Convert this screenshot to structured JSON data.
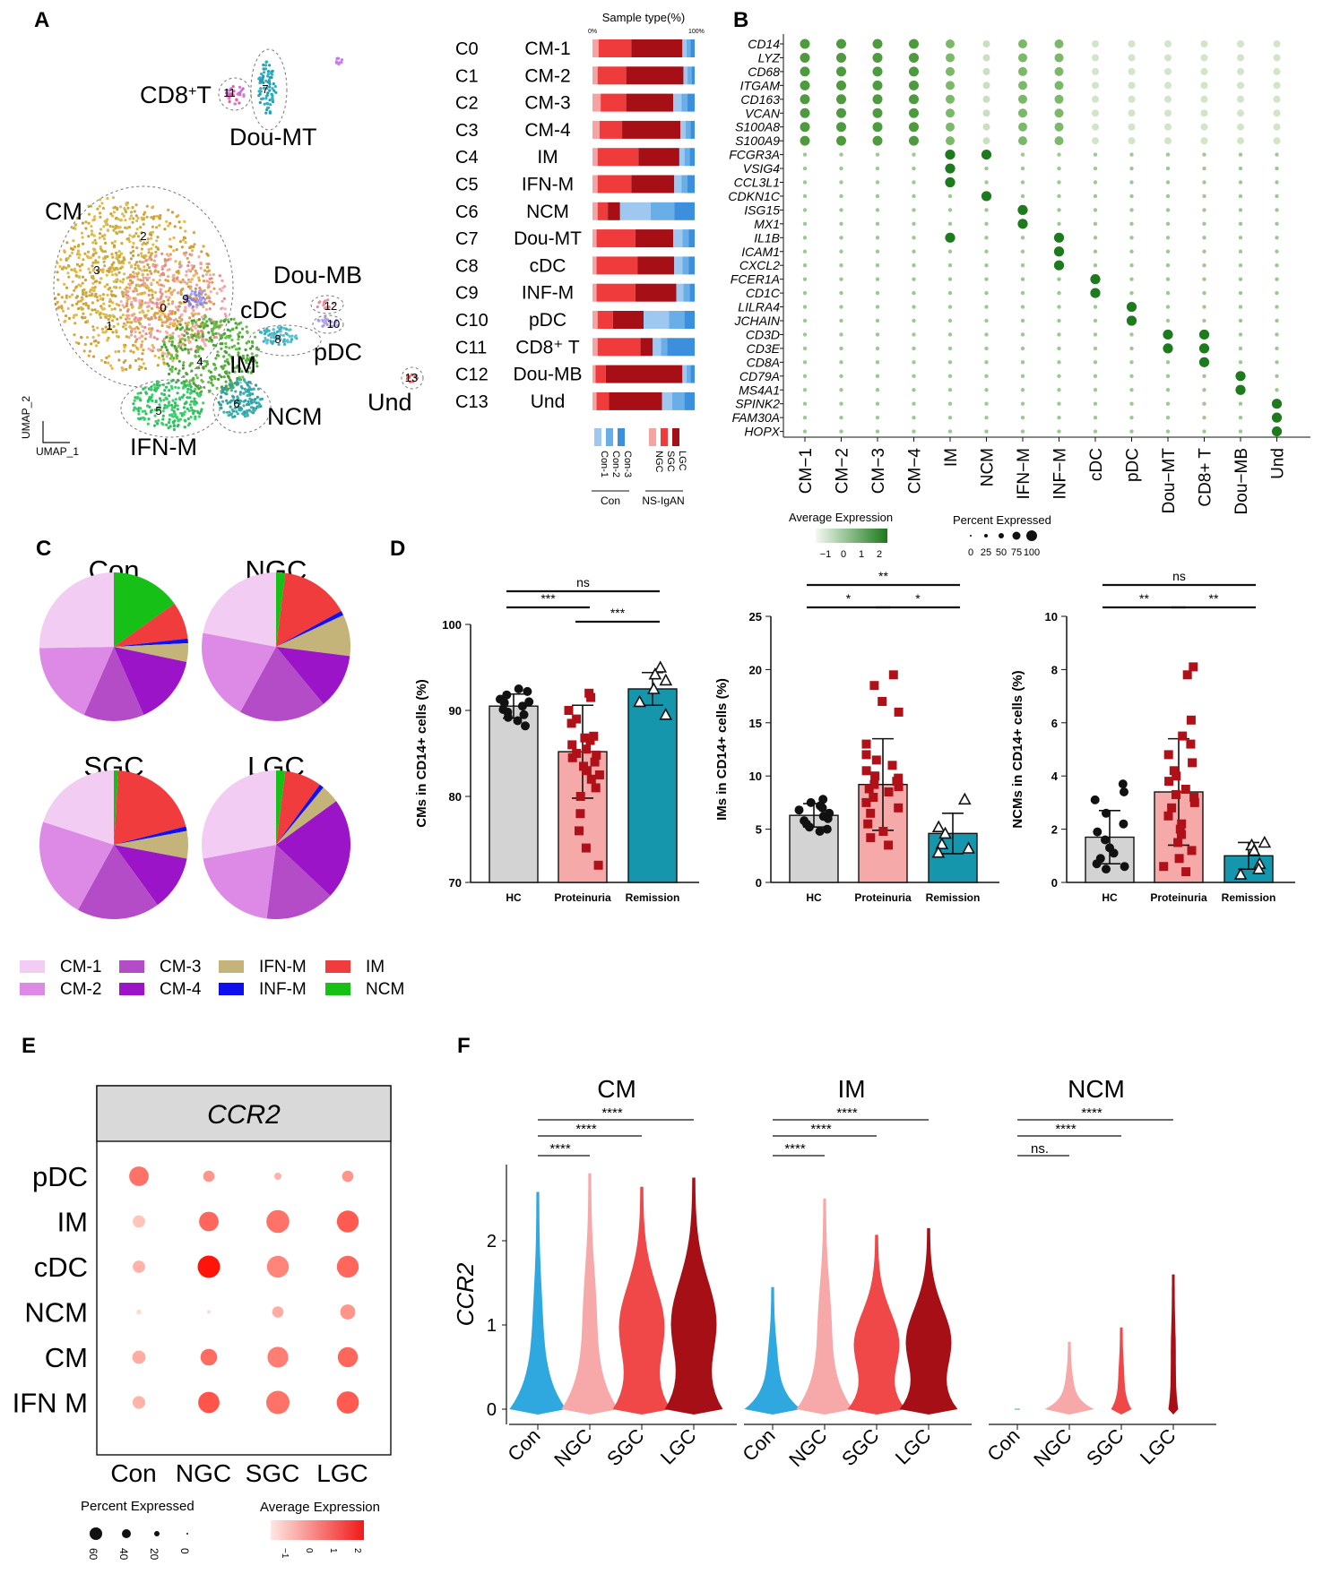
{
  "panel_labels": {
    "A": "A",
    "B": "B",
    "C": "C",
    "D": "D",
    "E": "E",
    "F": "F"
  },
  "colors": {
    "con1": "#9ec8f0",
    "con2": "#6aaee8",
    "con3": "#3c8fdc",
    "ngc": "#f6a3a3",
    "sgc": "#ef3b3b",
    "lgc": "#a50f15",
    "hc_bar": "#d3d3d3",
    "prot_bar": "#f6a9a9",
    "rem_bar": "#1596ac",
    "prot_point": "#b01018",
    "green_hi": "#1a7a1a",
    "green_lo": "#e6f2e0",
    "violin_con": "#2fa8e0",
    "violin_ngc": "#f7a8a8",
    "violin_sgc": "#f04848",
    "violin_lgc": "#a50f15"
  },
  "umap": {
    "axis_x": "UMAP_1",
    "axis_y": "UMAP_2",
    "cluster_labels": [
      {
        "text": "CD8",
        "sup": "+",
        "tail": "T"
      },
      {
        "text": "Dou-MT"
      },
      {
        "text": "CM"
      },
      {
        "text": "Dou-MB"
      },
      {
        "text": "cDC"
      },
      {
        "text": "pDC"
      },
      {
        "text": "IM"
      },
      {
        "text": "Und"
      },
      {
        "text": "NCM"
      },
      {
        "text": "IFN-M"
      }
    ],
    "cluster_numbers": [
      "0",
      "1",
      "2",
      "3",
      "4",
      "5",
      "6",
      "7",
      "8",
      "9",
      "10",
      "11",
      "12",
      "13"
    ]
  },
  "sample_type": {
    "title": "Sample type(%)",
    "tick_start": "0%",
    "tick_end": "100%",
    "rows": [
      {
        "code": "C0",
        "name": "CM-1"
      },
      {
        "code": "C1",
        "name": "CM-2"
      },
      {
        "code": "C2",
        "name": "CM-3"
      },
      {
        "code": "C3",
        "name": "CM-4"
      },
      {
        "code": "C4",
        "name": "IM"
      },
      {
        "code": "C5",
        "name": "IFN-M"
      },
      {
        "code": "C6",
        "name": "NCM"
      },
      {
        "code": "C7",
        "name": "Dou-MT"
      },
      {
        "code": "C8",
        "name": "cDC"
      },
      {
        "code": "C9",
        "name": "INF-M"
      },
      {
        "code": "C10",
        "name": "pDC"
      },
      {
        "code": "C11",
        "name": "CD8⁺ T"
      },
      {
        "code": "C12",
        "name": "Dou-MB"
      },
      {
        "code": "C13",
        "name": "Und"
      }
    ],
    "legend_con": [
      "Con-1",
      "Con-2",
      "Con-3"
    ],
    "legend_ns": [
      "NGC",
      "SGC",
      "LGC"
    ],
    "group_con": "Con",
    "group_ns": "NS-IgAN"
  },
  "chart_data": [
    {
      "id": "A-stacked",
      "type": "bar",
      "orientation": "horizontal-stacked-percent",
      "title": "Sample type(%)",
      "categories": [
        "C0",
        "C1",
        "C2",
        "C3",
        "C4",
        "C5",
        "C6",
        "C7",
        "C8",
        "C9",
        "C10",
        "C11",
        "C12",
        "C13"
      ],
      "series": [
        {
          "name": "NGC",
          "values": [
            6,
            5,
            8,
            7,
            5,
            5,
            5,
            4,
            4,
            4,
            5,
            5,
            3,
            4
          ]
        },
        {
          "name": "SGC",
          "values": [
            32,
            28,
            25,
            22,
            40,
            33,
            10,
            38,
            40,
            38,
            15,
            42,
            10,
            12
          ]
        },
        {
          "name": "LGC",
          "values": [
            50,
            56,
            46,
            57,
            40,
            42,
            12,
            37,
            36,
            40,
            30,
            12,
            75,
            52
          ]
        },
        {
          "name": "Con-1",
          "values": [
            4,
            4,
            8,
            5,
            5,
            7,
            30,
            9,
            8,
            7,
            25,
            8,
            4,
            10
          ]
        },
        {
          "name": "Con-2",
          "values": [
            4,
            4,
            6,
            5,
            5,
            6,
            23,
            6,
            6,
            6,
            15,
            6,
            4,
            12
          ]
        },
        {
          "name": "Con-3",
          "values": [
            4,
            3,
            7,
            4,
            5,
            7,
            20,
            6,
            6,
            5,
            10,
            27,
            4,
            10
          ]
        }
      ]
    },
    {
      "id": "B-dotplot",
      "type": "scatter",
      "title": "",
      "genes": [
        "CD14",
        "LYZ",
        "CD68",
        "ITGAM",
        "CD163",
        "VCAN",
        "S100A8",
        "S100A9",
        "FCGR3A",
        "VSIG4",
        "CCL3L1",
        "CDKN1C",
        "ISG15",
        "MX1",
        "IL1B",
        "ICAM1",
        "CXCL2",
        "FCER1A",
        "CD1C",
        "LILRA4",
        "JCHAIN",
        "CD3D",
        "CD3E",
        "CD8A",
        "CD79A",
        "MS4A1",
        "SPINK2",
        "FAM30A",
        "HOPX"
      ],
      "clusters": [
        "CM−1",
        "CM−2",
        "CM−3",
        "CM−4",
        "IM",
        "NCM",
        "IFN−M",
        "INF−M",
        "cDC",
        "pDC",
        "Dou−MT",
        "CD8+ T",
        "Dou−MB",
        "Und"
      ],
      "legend_color_title": "Average Expression",
      "legend_color_ticks": [
        "−1",
        "0",
        "1",
        "2"
      ],
      "legend_size_title": "Percent Expressed",
      "legend_size_ticks": [
        "0",
        "25",
        "50",
        "75",
        "100"
      ]
    },
    {
      "id": "C-pies",
      "type": "pie",
      "categories": [
        "CM-1",
        "CM-2",
        "CM-3",
        "CM-4",
        "IFN-M",
        "INF-M",
        "IM",
        "NCM"
      ],
      "colors": [
        "#f2ccf2",
        "#dc8ae6",
        "#b44cc8",
        "#9b14c8",
        "#c4b47a",
        "#1010ee",
        "#f03c3c",
        "#16c016"
      ],
      "pies": [
        {
          "title": "Con",
          "values": [
            25,
            18,
            13,
            15,
            4,
            1,
            8,
            15
          ]
        },
        {
          "title": "NGC",
          "values": [
            22,
            20,
            19,
            12,
            9,
            1,
            15,
            2
          ]
        },
        {
          "title": "SGC",
          "values": [
            20,
            22,
            18,
            12,
            6,
            1,
            20,
            1
          ]
        },
        {
          "title": "LGC",
          "values": [
            28,
            20,
            15,
            22,
            4,
            1,
            8,
            2
          ]
        }
      ]
    },
    {
      "id": "D-CMs",
      "type": "bar",
      "ylabel": "CMs in CD14+ cells (%)",
      "ylim": [
        70,
        100
      ],
      "yticks": [
        70,
        80,
        90,
        100
      ],
      "categories": [
        "HC",
        "Proteinuria",
        "Remission"
      ],
      "values": [
        90.5,
        85.2,
        92.5
      ],
      "sd": [
        1.4,
        5.4,
        1.9
      ],
      "points": [
        [
          92.5,
          92.2,
          91.8,
          91.3,
          90.9,
          90.5,
          90.1,
          89.8,
          89.5,
          89.2,
          88.8,
          88.2,
          91
        ],
        [
          92,
          91.5,
          90,
          89,
          88.5,
          87,
          86.5,
          86,
          85.5,
          85,
          84.5,
          84,
          83.5,
          83,
          82.5,
          82,
          81,
          80,
          78,
          76,
          74,
          72,
          86.8,
          84.8
        ],
        [
          95,
          94.2,
          93.5,
          92.5,
          91,
          89.5
        ]
      ],
      "significance": [
        {
          "from": 0,
          "to": 1,
          "label": "***"
        },
        {
          "from": 1,
          "to": 2,
          "label": "***"
        },
        {
          "from": 0,
          "to": 2,
          "label": "ns"
        }
      ]
    },
    {
      "id": "D-IMs",
      "type": "bar",
      "ylabel": "IMs in CD14+ cells (%)",
      "ylim": [
        0,
        25
      ],
      "yticks": [
        0,
        5,
        10,
        15,
        20,
        25
      ],
      "categories": [
        "HC",
        "Proteinuria",
        "Remission"
      ],
      "values": [
        6.3,
        9.2,
        4.6
      ],
      "sd": [
        1.1,
        4.3,
        1.9
      ],
      "points": [
        [
          7.8,
          7.5,
          7.2,
          7,
          6.8,
          6.5,
          6.2,
          6,
          5.8,
          5.5,
          5.2,
          5,
          4.8
        ],
        [
          19.5,
          18.5,
          17,
          16,
          13,
          12,
          11.5,
          11,
          10.5,
          10,
          9.8,
          9.5,
          9.2,
          9,
          8.8,
          8.5,
          8,
          7.5,
          7,
          6.5,
          5.5,
          4.8,
          4.2,
          3.5
        ],
        [
          7.8,
          5.2,
          4.6,
          3.6,
          3.2,
          2.8
        ]
      ],
      "significance": [
        {
          "from": 0,
          "to": 1,
          "label": "*"
        },
        {
          "from": 1,
          "to": 2,
          "label": "*"
        },
        {
          "from": 0,
          "to": 2,
          "label": "**"
        }
      ]
    },
    {
      "id": "D-NCMs",
      "type": "bar",
      "ylabel": "NCMs in CD14+ cells (%)",
      "ylim": [
        0,
        10
      ],
      "yticks": [
        0,
        2,
        4,
        6,
        8,
        10
      ],
      "categories": [
        "HC",
        "Proteinuria",
        "Remission"
      ],
      "values": [
        1.7,
        3.4,
        1.0
      ],
      "sd": [
        1.0,
        2.0,
        0.5
      ],
      "points": [
        [
          3.7,
          3.4,
          3.1,
          2.6,
          2.2,
          1.9,
          1.6,
          1.3,
          1.1,
          0.9,
          0.7,
          0.6,
          0.5
        ],
        [
          8.1,
          7.8,
          6.1,
          5.5,
          5.2,
          4.8,
          4.5,
          4.2,
          4,
          3.8,
          3.5,
          3.2,
          3,
          2.8,
          2.5,
          2.2,
          2,
          1.8,
          1.5,
          1.2,
          0.9,
          0.6,
          0.4,
          3.3
        ],
        [
          1.5,
          1.4,
          1.2,
          0.7,
          0.5,
          0.3
        ]
      ],
      "significance": [
        {
          "from": 0,
          "to": 1,
          "label": "**"
        },
        {
          "from": 1,
          "to": 2,
          "label": "**"
        },
        {
          "from": 0,
          "to": 2,
          "label": "ns"
        }
      ]
    },
    {
      "id": "E-dotplot",
      "type": "scatter",
      "title": "CCR2",
      "rows": [
        "pDC",
        "IM",
        "cDC",
        "NCM",
        "CM",
        "IFN M"
      ],
      "cols": [
        "Con",
        "NGC",
        "SGC",
        "LGC"
      ],
      "pct": [
        [
          30,
          10,
          4,
          10
        ],
        [
          12,
          30,
          42,
          38
        ],
        [
          12,
          40,
          38,
          38
        ],
        [
          2,
          1,
          10,
          18
        ],
        [
          14,
          22,
          34,
          32
        ],
        [
          13,
          36,
          43,
          39
        ]
      ],
      "avg": [
        [
          0.8,
          0.2,
          -0.3,
          0.2
        ],
        [
          -0.6,
          1,
          0.8,
          1.2
        ],
        [
          -0.3,
          2.4,
          0.5,
          1
        ],
        [
          -1,
          -1,
          -0.2,
          0.2
        ],
        [
          -0.2,
          0.9,
          0.6,
          1
        ],
        [
          -0.3,
          1.3,
          0.8,
          1.2
        ]
      ],
      "legend_size_title": "Percent Expressed",
      "legend_size_ticks": [
        "60",
        "40",
        "20",
        "0"
      ],
      "legend_color_title": "Average Expression",
      "legend_color_ticks": [
        "−1",
        "0",
        "1",
        "2"
      ]
    },
    {
      "id": "F-violins",
      "type": "area",
      "ylabel": "CCR2",
      "yticks": [
        "0",
        "1",
        "2"
      ],
      "panels": [
        {
          "title": "CM",
          "groups": [
            "Con",
            "NGC",
            "SGC",
            "LGC"
          ],
          "max": [
            2.58,
            2.8,
            2.64,
            2.75
          ],
          "significance": [
            {
              "from": 0,
              "to": 1,
              "label": "****"
            },
            {
              "from": 0,
              "to": 2,
              "label": "****"
            },
            {
              "from": 0,
              "to": 3,
              "label": "****"
            }
          ]
        },
        {
          "title": "IM",
          "groups": [
            "Con",
            "NGC",
            "SGC",
            "LGC"
          ],
          "max": [
            1.45,
            2.5,
            2.07,
            2.15
          ],
          "significance": [
            {
              "from": 0,
              "to": 1,
              "label": "****"
            },
            {
              "from": 0,
              "to": 2,
              "label": "****"
            },
            {
              "from": 0,
              "to": 3,
              "label": "****"
            }
          ]
        },
        {
          "title": "NCM",
          "groups": [
            "Con",
            "NGC",
            "SGC",
            "LGC"
          ],
          "max": [
            0,
            0.8,
            0.97,
            1.6
          ],
          "significance": [
            {
              "from": 0,
              "to": 1,
              "label": "ns."
            },
            {
              "from": 0,
              "to": 2,
              "label": "****"
            },
            {
              "from": 0,
              "to": 3,
              "label": "****"
            }
          ]
        }
      ]
    }
  ]
}
